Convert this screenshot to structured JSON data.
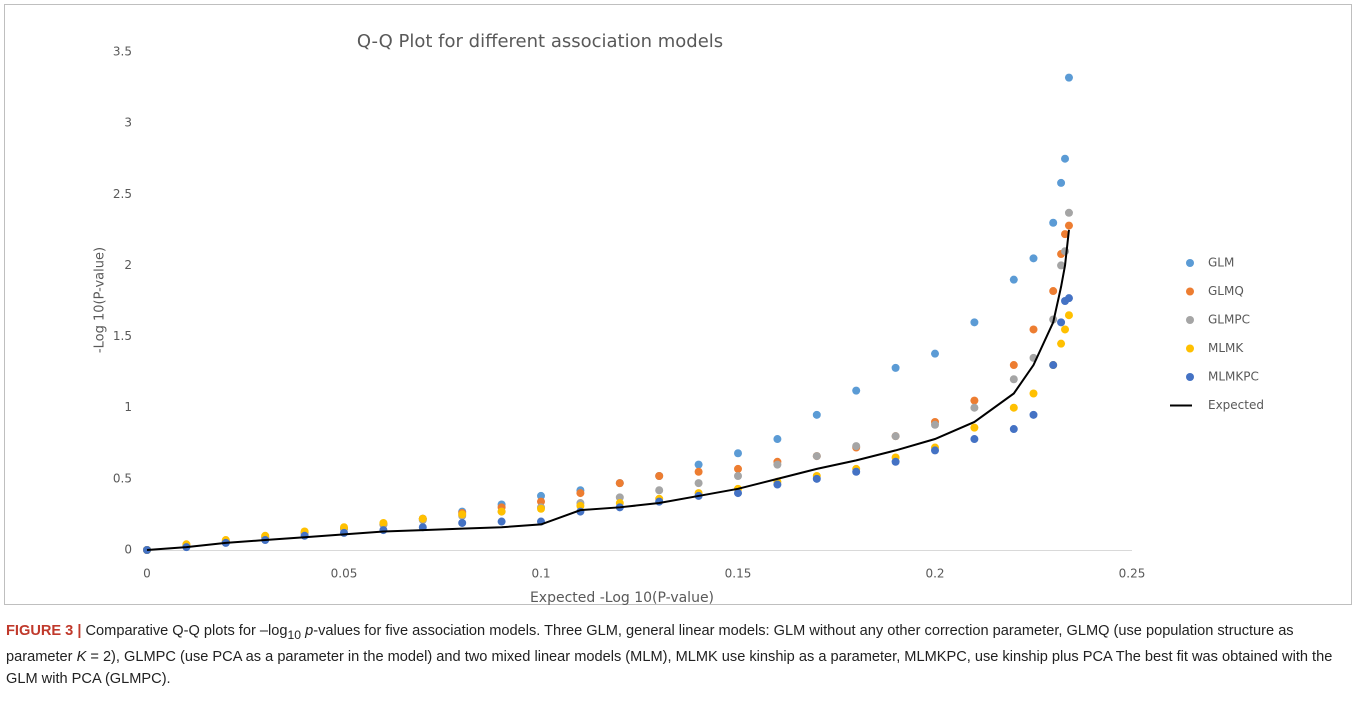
{
  "chart_data": {
    "type": "scatter",
    "title": "Q-Q Plot for different association models",
    "x_label": "Expected -Log 10(P-value)",
    "y_label": "-Log 10(P-value)",
    "x": [
      0,
      0.01,
      0.02,
      0.03,
      0.04,
      0.05,
      0.06,
      0.07,
      0.08,
      0.09,
      0.1,
      0.11,
      0.12,
      0.13,
      0.14,
      0.15,
      0.16,
      0.17,
      0.18,
      0.19,
      0.2,
      0.21,
      0.22,
      0.225,
      0.23,
      0.232,
      0.233,
      0.234
    ],
    "series": [
      {
        "name": "GLM",
        "color": "#5b9bd5",
        "style": "markers",
        "values": [
          0,
          0.03,
          0.06,
          0.09,
          0.12,
          0.15,
          0.18,
          0.22,
          0.27,
          0.32,
          0.38,
          0.42,
          0.47,
          0.52,
          0.6,
          0.68,
          0.78,
          0.95,
          1.12,
          1.28,
          1.38,
          1.6,
          1.9,
          2.05,
          2.3,
          2.58,
          2.75,
          3.32
        ]
      },
      {
        "name": "GLMQ",
        "color": "#ed7d31",
        "style": "markers",
        "values": [
          0,
          0.03,
          0.06,
          0.09,
          0.12,
          0.15,
          0.18,
          0.22,
          0.26,
          0.3,
          0.34,
          0.4,
          0.47,
          0.52,
          0.55,
          0.57,
          0.62,
          0.66,
          0.72,
          0.8,
          0.9,
          1.05,
          1.3,
          1.55,
          1.82,
          2.08,
          2.22,
          2.28
        ]
      },
      {
        "name": "GLMPC",
        "color": "#a5a5a5",
        "style": "markers",
        "values": [
          0,
          0.03,
          0.06,
          0.09,
          0.12,
          0.15,
          0.18,
          0.21,
          0.24,
          0.27,
          0.3,
          0.33,
          0.37,
          0.42,
          0.47,
          0.52,
          0.6,
          0.66,
          0.73,
          0.8,
          0.88,
          1.0,
          1.2,
          1.35,
          1.62,
          2.0,
          2.1,
          2.37
        ]
      },
      {
        "name": "MLMK",
        "color": "#ffc000",
        "style": "markers",
        "values": [
          0,
          0.04,
          0.07,
          0.1,
          0.13,
          0.16,
          0.19,
          0.22,
          0.25,
          0.27,
          0.29,
          0.31,
          0.33,
          0.36,
          0.4,
          0.43,
          0.48,
          0.52,
          0.57,
          0.65,
          0.72,
          0.86,
          1.0,
          1.1,
          1.3,
          1.45,
          1.55,
          1.65
        ]
      },
      {
        "name": "MLMKPC",
        "color": "#4472c4",
        "style": "markers",
        "values": [
          0,
          0.02,
          0.05,
          0.07,
          0.1,
          0.12,
          0.14,
          0.16,
          0.19,
          0.2,
          0.2,
          0.27,
          0.3,
          0.34,
          0.38,
          0.4,
          0.46,
          0.5,
          0.55,
          0.62,
          0.7,
          0.78,
          0.85,
          0.95,
          1.3,
          1.6,
          1.75,
          1.77
        ]
      },
      {
        "name": "Expected",
        "color": "#000000",
        "style": "line",
        "values": [
          0,
          0.02,
          0.05,
          0.07,
          0.09,
          0.11,
          0.13,
          0.14,
          0.15,
          0.16,
          0.18,
          0.28,
          0.3,
          0.33,
          0.38,
          0.43,
          0.5,
          0.57,
          0.63,
          0.7,
          0.78,
          0.9,
          1.1,
          1.3,
          1.6,
          1.85,
          2.0,
          2.25
        ]
      }
    ],
    "xlim": [
      0,
      0.25
    ],
    "xticks": [
      0,
      0.05,
      0.1,
      0.15,
      0.2,
      0.25
    ],
    "ylim": [
      0,
      3.5
    ],
    "yticks": [
      0,
      0.5,
      1,
      1.5,
      2,
      2.5,
      3,
      3.5
    ],
    "grid": false,
    "legend": "right"
  },
  "caption": {
    "label": "FIGURE 3 |",
    "parts": [
      "Comparative Q-Q plots for –log",
      "10",
      "p",
      "-values for five association models. Three GLM, general linear models: GLM without any other correction parameter, GLMQ (use population structure as parameter ",
      "K",
      " = 2), GLMPC (use PCA as a parameter in the model) and two mixed linear models (MLM), MLMK use kinship as a parameter, MLMKPC, use kinship plus PCA The best fit was obtained with the GLM with PCA (GLMPC)."
    ]
  }
}
